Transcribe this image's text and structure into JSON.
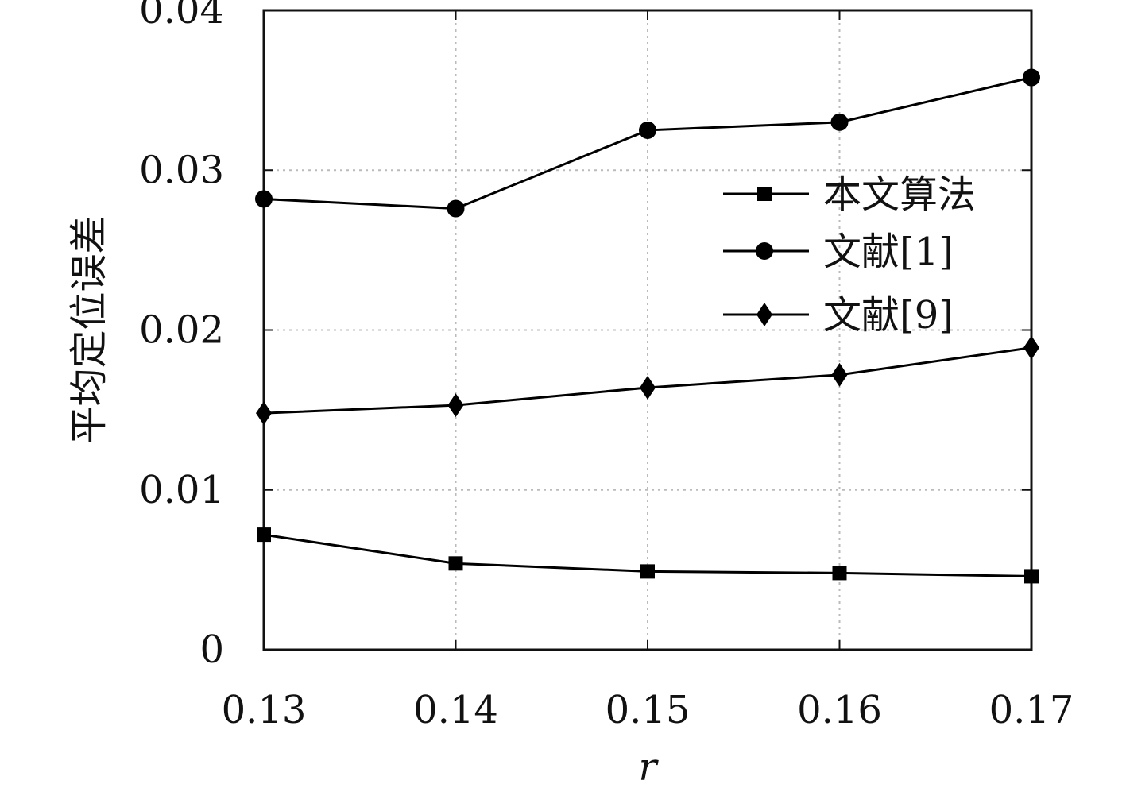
{
  "chart_data": {
    "type": "line",
    "xlabel": "r",
    "ylabel": "平均定位误差",
    "x": [
      0.13,
      0.14,
      0.15,
      0.16,
      0.17
    ],
    "x_tick_labels": [
      "0.13",
      "0.14",
      "0.15",
      "0.16",
      "0.17"
    ],
    "xlim": [
      0.13,
      0.17
    ],
    "ylim": [
      0,
      0.04
    ],
    "y_ticks": [
      0,
      0.01,
      0.02,
      0.03,
      0.04
    ],
    "y_tick_labels": [
      "0",
      "0.01",
      "0.02",
      "0.03",
      "0.04"
    ],
    "grid": true,
    "grid_style": "dotted",
    "legend_position": "right-middle",
    "series": [
      {
        "name": "本文算法",
        "marker": "square",
        "color": "#000000",
        "values": [
          0.0072,
          0.0054,
          0.0049,
          0.0048,
          0.0046
        ]
      },
      {
        "name": "文献[1]",
        "marker": "circle",
        "color": "#000000",
        "values": [
          0.0282,
          0.0276,
          0.0325,
          0.033,
          0.0358
        ]
      },
      {
        "name": "文献[9]",
        "marker": "diamond",
        "color": "#000000",
        "values": [
          0.0148,
          0.0153,
          0.0164,
          0.0172,
          0.0189
        ]
      }
    ]
  }
}
